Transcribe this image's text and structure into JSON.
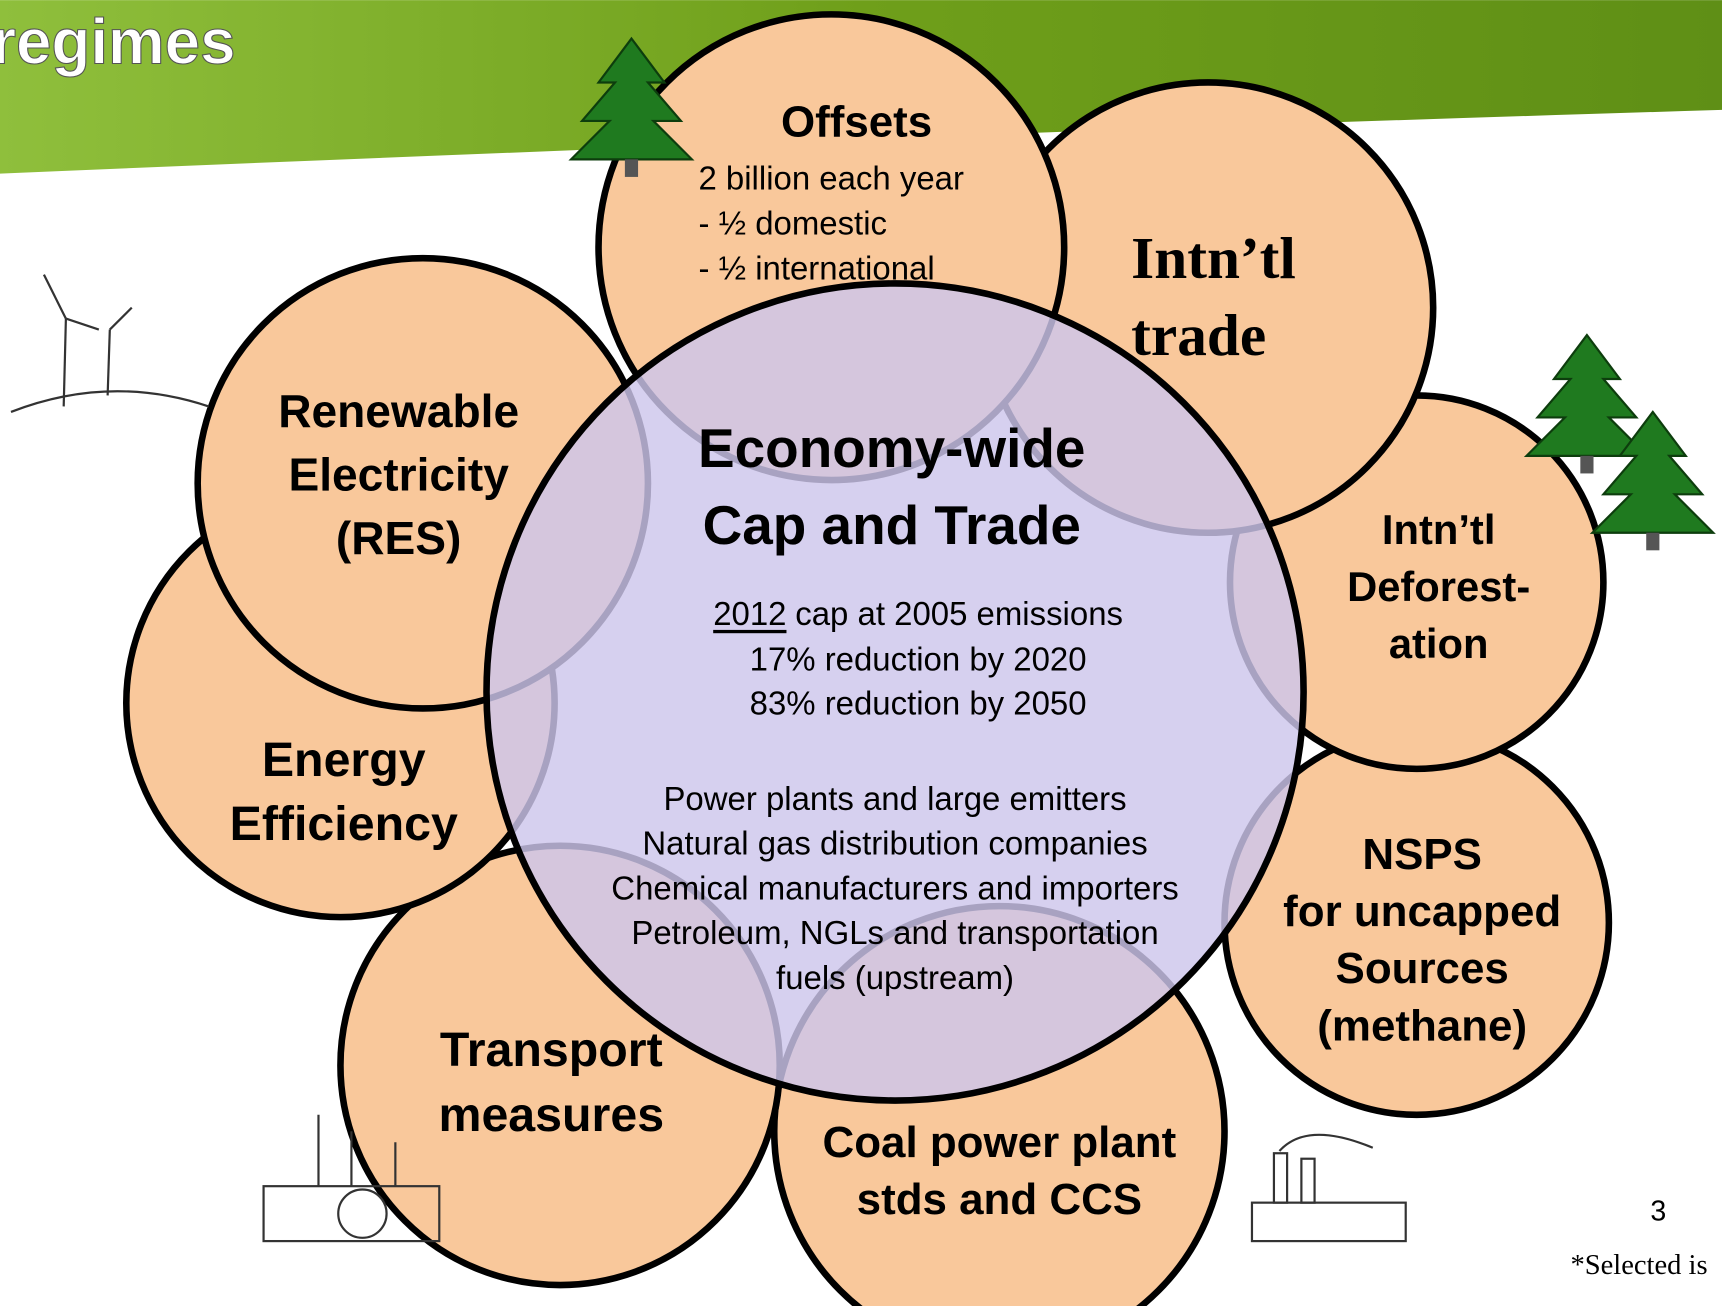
{
  "header": {
    "title": "regimes"
  },
  "center": {
    "title": [
      "Economy-wide",
      "Cap and Trade"
    ],
    "cap": {
      "year": "2012",
      "text": "cap at 2005 emissions"
    },
    "targets": [
      "17% reduction by 2020",
      "83% reduction by 2050"
    ],
    "sectors": [
      "Power plants and large emitters",
      "Natural gas distribution companies",
      "Chemical manufacturers and importers",
      "Petroleum, NGLs and transportation",
      "fuels (upstream)"
    ]
  },
  "petals": [
    {
      "label": [
        "Offsets"
      ],
      "details": [
        "2 billion each year",
        "- ½ domestic",
        "- ½ international"
      ]
    },
    {
      "label": [
        "Intn’tl",
        "trade"
      ]
    },
    {
      "label": [
        "Intn’tl",
        "Deforest-",
        "ation"
      ]
    },
    {
      "label": [
        "NSPS",
        "for uncapped",
        "Sources",
        "(methane)"
      ]
    },
    {
      "label": [
        "Coal power plant",
        "stds and CCS"
      ]
    },
    {
      "label": [
        "Transport",
        "measures"
      ]
    },
    {
      "label": [
        "Energy",
        "Efficiency"
      ]
    },
    {
      "label": [
        "Renewable",
        "Electricity",
        "(RES)"
      ]
    }
  ],
  "page_number": "3",
  "footnote": "*Selected is"
}
